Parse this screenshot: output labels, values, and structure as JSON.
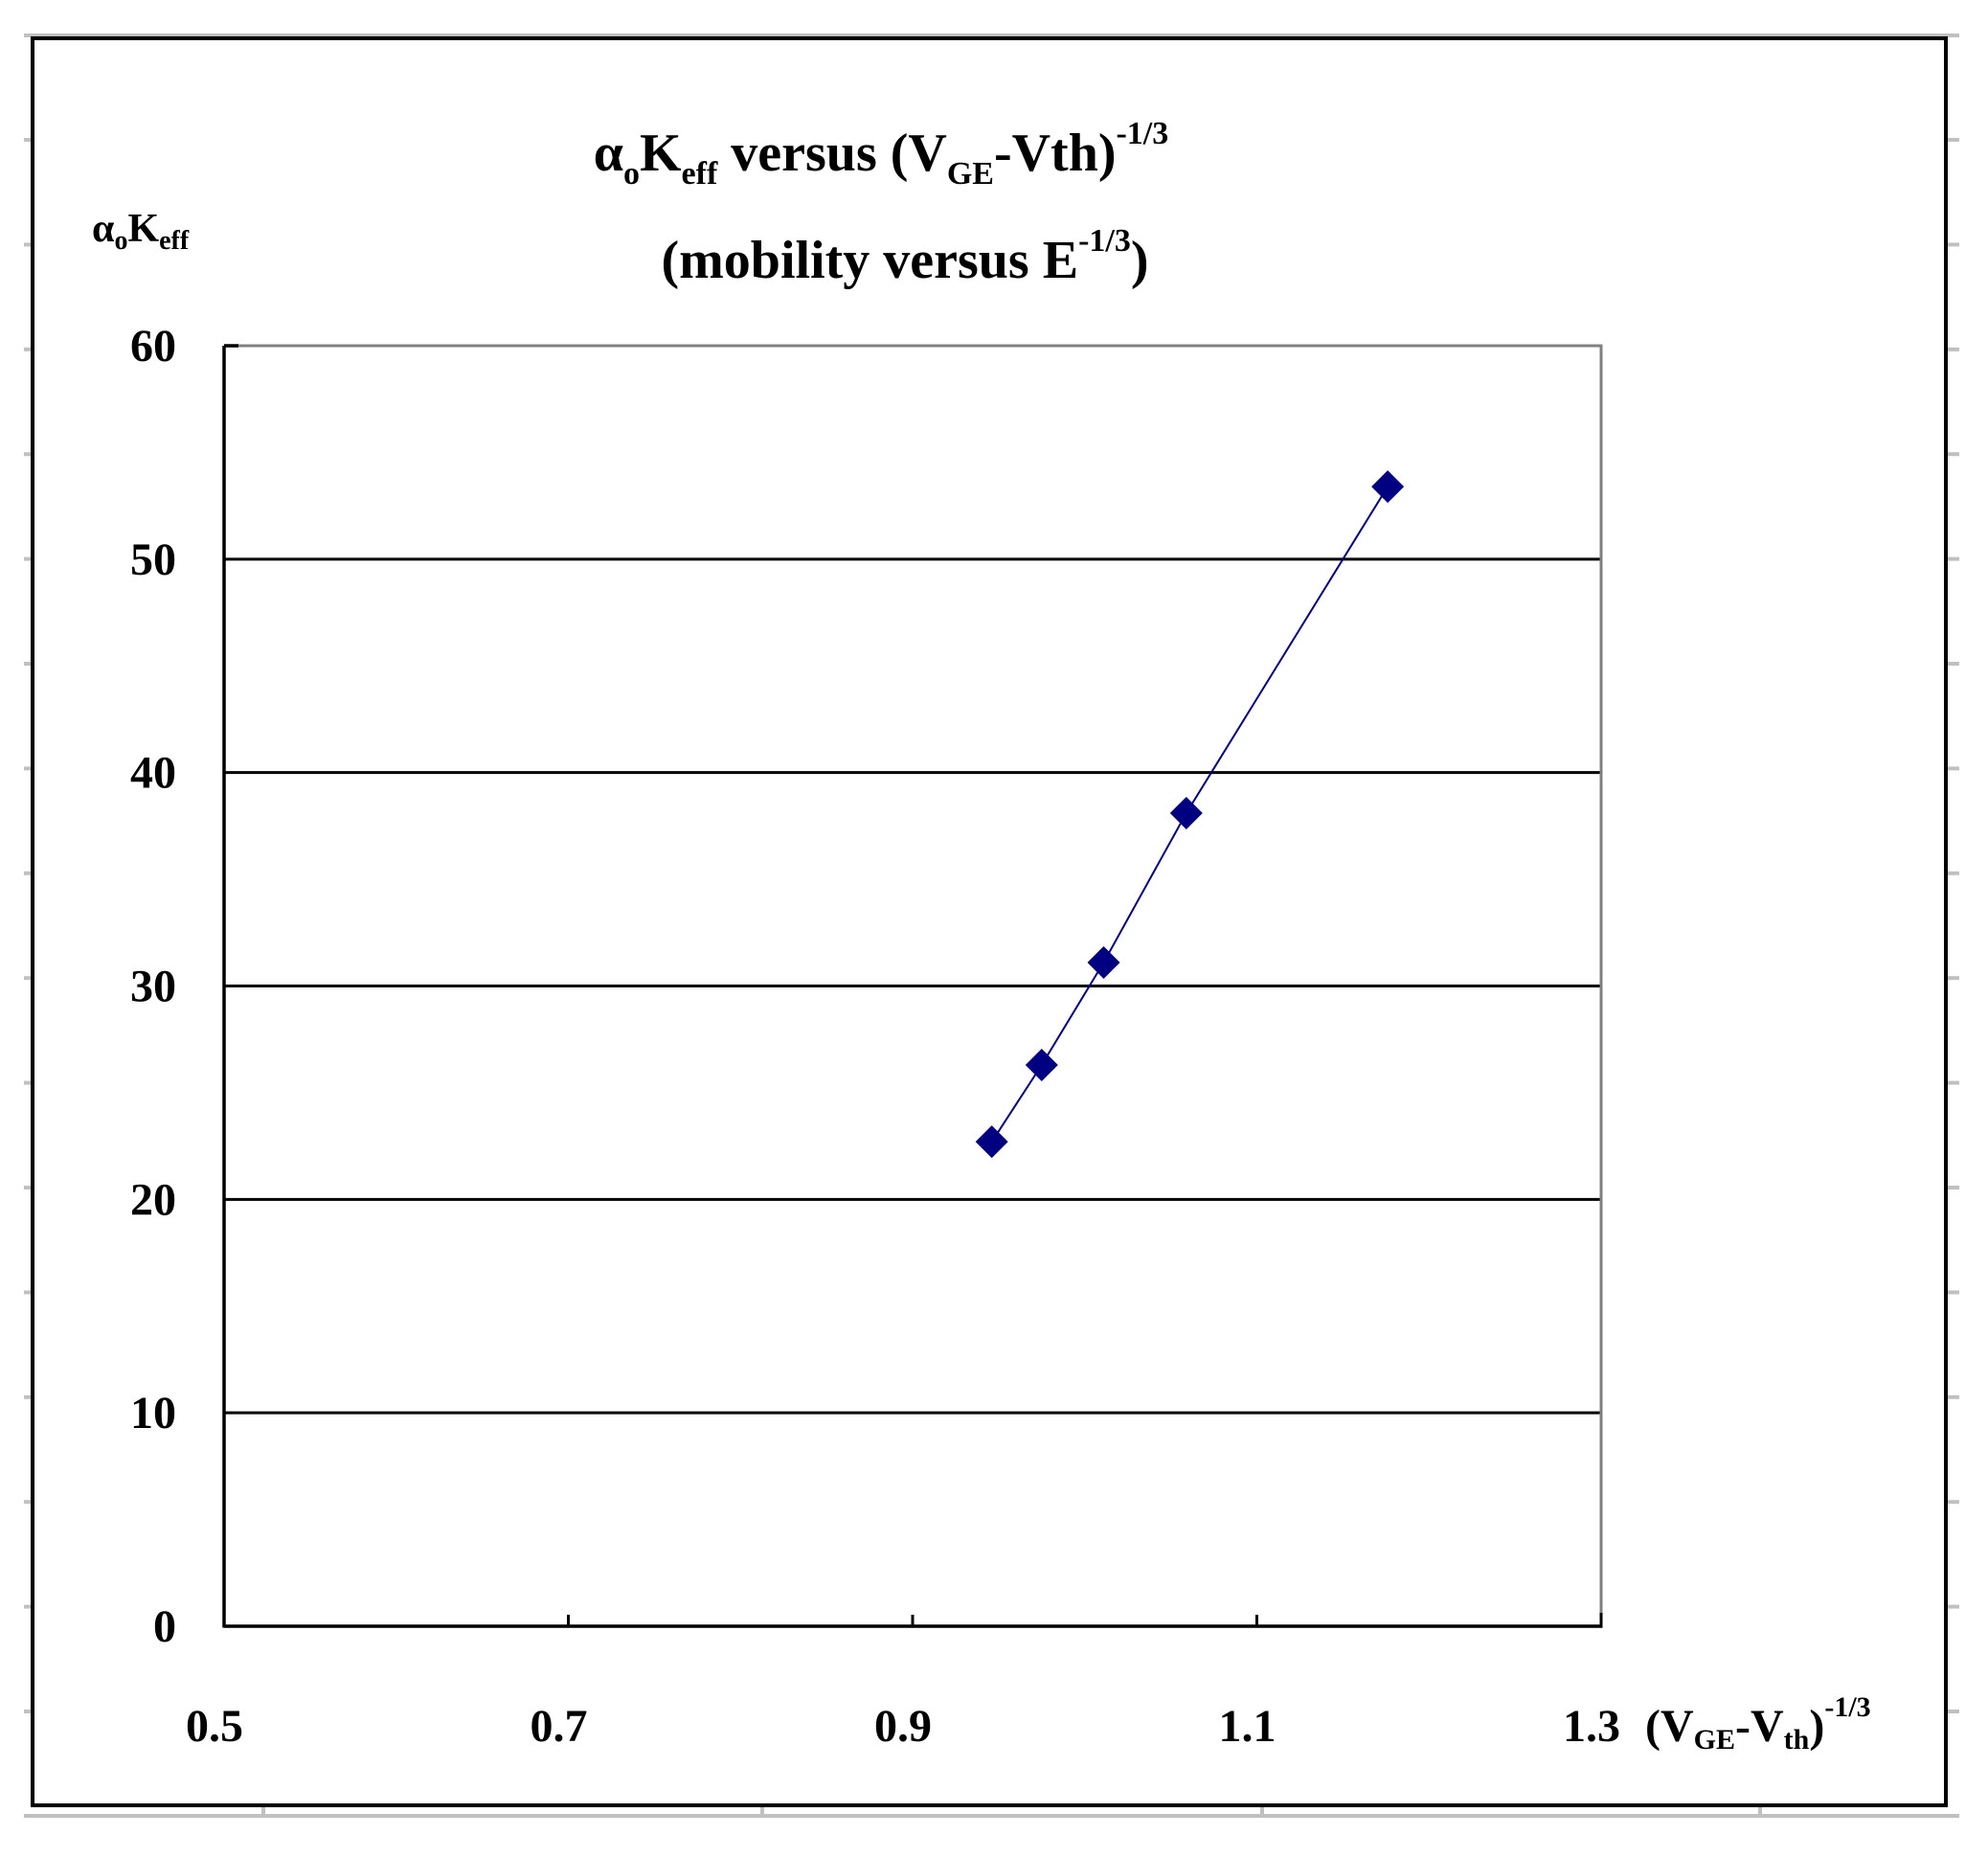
{
  "chart_data": {
    "type": "line",
    "title": "αoKeff versus (VGE-Vth)^-1/3",
    "subtitle": "(mobility versus E^-1/3)",
    "title_parts": {
      "alpha": "α",
      "alpha_sub": "o",
      "k": "K",
      "k_sub": "eff",
      "versus": " versus (V",
      "v_sub": "GE",
      "tail": "-Vth)",
      "exp": "-1/3"
    },
    "subtitle_parts": {
      "main": "(mobility versus E",
      "exp": "-1/3",
      "close": ")"
    },
    "ylabel": "αoKeff",
    "ylabel_parts": {
      "alpha": "α",
      "alpha_sub": "o",
      "k": "K",
      "k_sub": "eff"
    },
    "xlabel": "(VGE-Vth)^-1/3",
    "xlabel_parts": {
      "open": "(V",
      "v_sub": "GE",
      "mid": "-V",
      "v2_sub": "th",
      "close": ")",
      "exp": "-1/3"
    },
    "xlim": [
      0.5,
      1.3
    ],
    "ylim": [
      0,
      60
    ],
    "x_ticks": [
      "0.5",
      "0.7",
      "0.9",
      "1.1",
      "1.3"
    ],
    "y_ticks": [
      "0",
      "10",
      "20",
      "30",
      "40",
      "50",
      "60"
    ],
    "grid": {
      "horizontal": true,
      "vertical": false
    },
    "legend": null,
    "series": [
      {
        "name": "αoKeff",
        "color": "#000080",
        "marker": "diamond",
        "x": [
          0.946,
          0.975,
          1.011,
          1.059,
          1.176
        ],
        "y": [
          22.7,
          26.3,
          31.1,
          38.1,
          53.4
        ]
      }
    ]
  },
  "colors": {
    "series": "#000080",
    "frame": "#000000",
    "plot_border": "#808080",
    "sheet_grid": "#c0c0c0"
  }
}
